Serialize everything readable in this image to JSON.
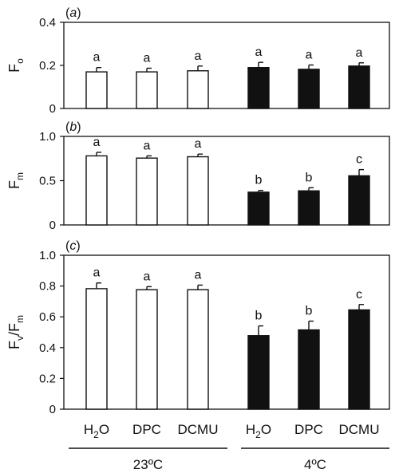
{
  "chart_data": [
    {
      "type": "bar",
      "panel_label": "(a)",
      "ylabel": {
        "main": "F",
        "sub": "o",
        "tail": ""
      },
      "ylim": [
        0,
        0.4
      ],
      "yticks": [
        "0",
        "0.2",
        "0.4"
      ],
      "categories": [
        "H2O",
        "DPC",
        "DCMU",
        "H2O",
        "DPC",
        "DCMU"
      ],
      "values": [
        0.17,
        0.17,
        0.175,
        0.19,
        0.182,
        0.197
      ],
      "errors": [
        0.02,
        0.017,
        0.022,
        0.024,
        0.02,
        0.015
      ],
      "sig_letters": [
        "a",
        "a",
        "a",
        "a",
        "a",
        "a"
      ],
      "fill": [
        "#ffffff",
        "#ffffff",
        "#ffffff",
        "#111111",
        "#111111",
        "#111111"
      ]
    },
    {
      "type": "bar",
      "panel_label": "(b)",
      "ylabel": {
        "main": "F",
        "sub": "m",
        "tail": ""
      },
      "ylim": [
        0,
        1.0
      ],
      "yticks": [
        "0",
        "0.5",
        "1.0"
      ],
      "categories": [
        "H2O",
        "DPC",
        "DCMU",
        "H2O",
        "DPC",
        "DCMU"
      ],
      "values": [
        0.78,
        0.755,
        0.77,
        0.37,
        0.385,
        0.555
      ],
      "errors": [
        0.04,
        0.025,
        0.03,
        0.02,
        0.035,
        0.07
      ],
      "sig_letters": [
        "a",
        "a",
        "a",
        "b",
        "b",
        "c"
      ],
      "fill": [
        "#ffffff",
        "#ffffff",
        "#ffffff",
        "#111111",
        "#111111",
        "#111111"
      ]
    },
    {
      "type": "bar",
      "panel_label": "(c)",
      "ylabel": {
        "main": "F",
        "sub": "v",
        "tail": "/F",
        "sub2": "m"
      },
      "ylim": [
        0,
        1.0
      ],
      "yticks": [
        "0",
        "0.2",
        "0.4",
        "0.6",
        "0.8",
        "1.0"
      ],
      "categories": [
        "H2O",
        "DPC",
        "DCMU",
        "H2O",
        "DPC",
        "DCMU"
      ],
      "values": [
        0.783,
        0.776,
        0.776,
        0.478,
        0.515,
        0.645
      ],
      "errors": [
        0.037,
        0.02,
        0.03,
        0.063,
        0.057,
        0.035
      ],
      "sig_letters": [
        "a",
        "a",
        "a",
        "b",
        "b",
        "c"
      ],
      "fill": [
        "#ffffff",
        "#ffffff",
        "#ffffff",
        "#111111",
        "#111111",
        "#111111"
      ]
    }
  ],
  "x_categories": [
    {
      "main": "H",
      "sub": "2",
      "tail": "O"
    },
    {
      "main": "DPC",
      "sub": "",
      "tail": ""
    },
    {
      "main": "DCMU",
      "sub": "",
      "tail": ""
    },
    {
      "main": "H",
      "sub": "2",
      "tail": "O"
    },
    {
      "main": "DPC",
      "sub": "",
      "tail": ""
    },
    {
      "main": "DCMU",
      "sub": "",
      "tail": ""
    }
  ],
  "groups": [
    {
      "label": "23ºC",
      "members": [
        0,
        1,
        2
      ]
    },
    {
      "label": "4ºC",
      "members": [
        3,
        4,
        5
      ]
    }
  ],
  "colors": {
    "axis": "#111111",
    "bar_outline": "#111111",
    "warm_fill": "#ffffff",
    "cold_fill": "#111111"
  }
}
